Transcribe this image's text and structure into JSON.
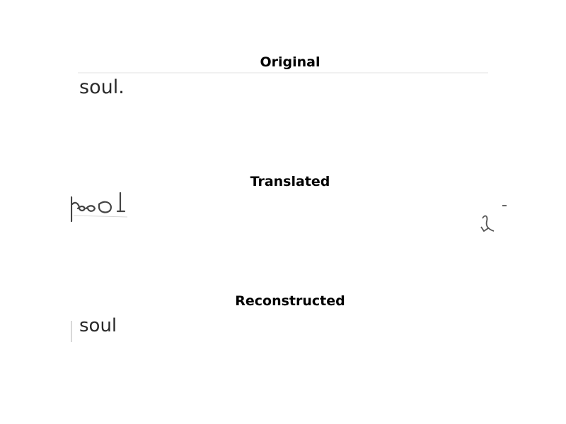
{
  "panels": [
    {
      "title": "Original",
      "image_text": "soul."
    },
    {
      "title": "Translated"
    },
    {
      "title": "Reconstructed",
      "image_text": "soul"
    }
  ]
}
